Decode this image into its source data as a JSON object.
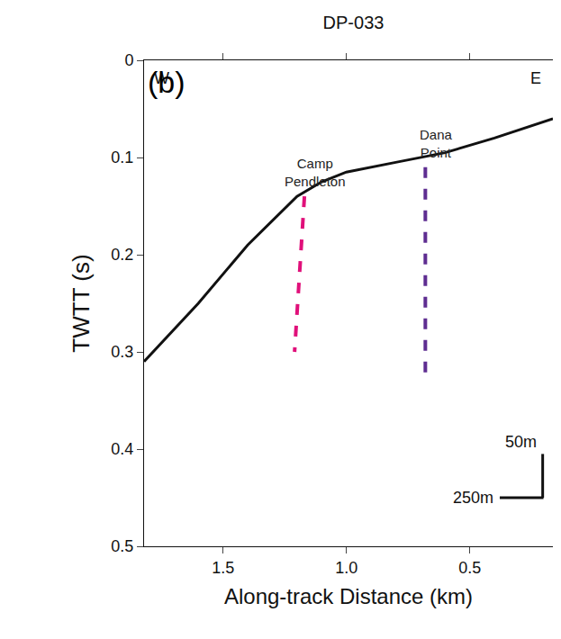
{
  "chart_data": {
    "type": "line",
    "title": "DP-033",
    "panel": "(b)",
    "x_label": "Along-track Distance (km)",
    "y_label": "TWTT (s)",
    "xlim": [
      1.82,
      0.163
    ],
    "ylim": [
      0.5,
      0
    ],
    "xticks": [
      {
        "value": 1.5,
        "label": "1.5"
      },
      {
        "value": 1,
        "label": "1.0"
      },
      {
        "value": 0.5,
        "label": "0.5"
      }
    ],
    "yticks": [
      0,
      0.1,
      0.2,
      0.3,
      0.4,
      0.5
    ],
    "grid": false,
    "annotations": [
      "W",
      "E"
    ],
    "scale_bar_labels": [
      "50m",
      "250m"
    ],
    "series": [
      {
        "color": "#111111",
        "line_style": "solid",
        "x": [
          1.82,
          1.6,
          1.4,
          1.2,
          1.1,
          1.0,
          0.8,
          0.6,
          0.4,
          0.163
        ],
        "values": [
          0.31,
          0.25,
          0.19,
          0.14,
          0.125,
          0.115,
          0.105,
          0.095,
          0.08,
          0.06
        ]
      },
      {
        "name": "Camp Pendleton",
        "color": "#e0107a",
        "line_style": "dash",
        "x": [
          1.17,
          1.21
        ],
        "values": [
          0.14,
          0.3
        ]
      },
      {
        "name": "Dana Point",
        "color": "#5e2d91",
        "line_style": "dash",
        "x": [
          0.68,
          0.68
        ],
        "values": [
          0.11,
          0.33
        ]
      }
    ]
  }
}
